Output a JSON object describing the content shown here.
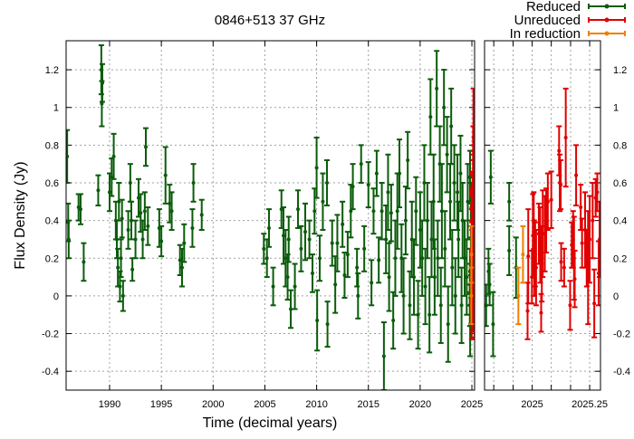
{
  "chart_data": {
    "type": "scatter",
    "title": "0846+513 37 GHz",
    "xlabel": "Time (decimal years)",
    "ylabel": "Flux Density (Jy)",
    "grid": true,
    "legend_position": "top-right",
    "ylim": [
      -0.5,
      1.354
    ],
    "y_ticks": [
      -0.4,
      -0.2,
      0,
      0.2,
      0.4,
      0.6,
      0.8,
      1,
      1.2
    ],
    "y_tick_labels": [
      "-0.4",
      "-0.2",
      "0",
      "0.2",
      "0.4",
      "0.6",
      "0.8",
      "1",
      "1.2"
    ],
    "panels": [
      {
        "name": "full",
        "xlim": [
          1985.8,
          2025.26
        ],
        "x_ticks": [
          1990,
          1995,
          2000,
          2005,
          2010,
          2015,
          2020,
          2025
        ],
        "x_tick_labels": [
          "1990",
          "1995",
          "2000",
          "2005",
          "2010",
          "2015",
          "2020",
          "2025"
        ],
        "x_grid": [
          1990,
          1995,
          2000,
          2005,
          2010,
          2015,
          2020,
          2025
        ],
        "y_axis_side": "left"
      },
      {
        "name": "zoom",
        "xlim": [
          2024.793,
          2025.297
        ],
        "x_ticks": [
          2025,
          2025.25
        ],
        "x_tick_labels": [
          "2025",
          "2025.25"
        ],
        "x_grid": [
          2024.833,
          2024.917,
          2025,
          2025.083,
          2025.167,
          2025.25
        ],
        "y_axis_side": "right"
      }
    ],
    "series": [
      {
        "name": "Reduced",
        "color": "#0a5c0a",
        "points": [
          [
            1985.9,
            0.74,
            0.14
          ],
          [
            1986.0,
            0.39,
            0.1
          ],
          [
            1986.05,
            0.3,
            0.1
          ],
          [
            1987,
            0.47,
            0.07
          ],
          [
            1987.2,
            0.46,
            0.08
          ],
          [
            1987.5,
            0.18,
            0.1
          ],
          [
            1988.9,
            0.56,
            0.08
          ],
          [
            1989.2,
            1.2,
            0.13
          ],
          [
            1989.25,
            1.02,
            0.12
          ],
          [
            1989.3,
            1.13,
            0.1
          ],
          [
            1990,
            0.55,
            0.1
          ],
          [
            1990.2,
            0.63,
            0.1
          ],
          [
            1990.4,
            0.74,
            0.12
          ],
          [
            1990.6,
            0.4,
            0.1
          ],
          [
            1990.7,
            0.3,
            0.1
          ],
          [
            1990.8,
            0.15,
            0.1
          ],
          [
            1990.9,
            0.5,
            0.1
          ],
          [
            1991,
            0.05,
            0.08
          ],
          [
            1991.1,
            0.2,
            0.1
          ],
          [
            1991.2,
            0.41,
            0.1
          ],
          [
            1991.3,
            0.0,
            0.08
          ],
          [
            1991.8,
            0.35,
            0.1
          ],
          [
            1992,
            0.6,
            0.1
          ],
          [
            1992.1,
            0.4,
            0.1
          ],
          [
            1992.2,
            0.14,
            0.06
          ],
          [
            1992.5,
            0.3,
            0.1
          ],
          [
            1992.8,
            0.52,
            0.1
          ],
          [
            1993,
            0.44,
            0.1
          ],
          [
            1993.2,
            0.3,
            0.1
          ],
          [
            1993.4,
            0.45,
            0.1
          ],
          [
            1993.5,
            0.79,
            0.1
          ],
          [
            1993.7,
            0.37,
            0.1
          ],
          [
            1994.8,
            0.36,
            0.1
          ],
          [
            1995,
            0.29,
            0.08
          ],
          [
            1995.4,
            0.64,
            0.15
          ],
          [
            1995.8,
            0.49,
            0.1
          ],
          [
            1996,
            0.45,
            0.1
          ],
          [
            1996.8,
            0.19,
            0.08
          ],
          [
            1997,
            0.15,
            0.1
          ],
          [
            1997.2,
            0.28,
            0.1
          ],
          [
            1998.1,
            0.6,
            0.1
          ],
          [
            1998,
            0.36,
            0.1
          ],
          [
            1998.9,
            0.43,
            0.08
          ],
          [
            2004.9,
            0.25,
            0.08
          ],
          [
            2005.2,
            0.2,
            0.1
          ],
          [
            2005.4,
            0.36,
            0.1
          ],
          [
            2005.8,
            0.05,
            0.1
          ],
          [
            2006.6,
            0.46,
            0.1
          ],
          [
            2006.8,
            0.32,
            0.15
          ],
          [
            2007,
            0.2,
            0.15
          ],
          [
            2007.2,
            0.1,
            0.12
          ],
          [
            2007.3,
            0.3,
            0.12
          ],
          [
            2007.5,
            -0.07,
            0.1
          ],
          [
            2007.9,
            0.05,
            0.12
          ],
          [
            2008.2,
            0.46,
            0.1
          ],
          [
            2008.5,
            0.25,
            0.12
          ],
          [
            2008.9,
            0.34,
            0.15
          ],
          [
            2009.3,
            0.3,
            0.1
          ],
          [
            2009.6,
            0.12,
            0.1
          ],
          [
            2009.8,
            0.45,
            0.12
          ],
          [
            2010,
            0.68,
            0.16
          ],
          [
            2010.05,
            -0.13,
            0.16
          ],
          [
            2010.3,
            0.2,
            0.12
          ],
          [
            2010.6,
            0.5,
            0.15
          ],
          [
            2011,
            0.6,
            0.12
          ],
          [
            2011.05,
            -0.15,
            0.12
          ],
          [
            2011.5,
            0.28,
            0.12
          ],
          [
            2011.8,
            0.06,
            0.15
          ],
          [
            2012,
            0.28,
            0.15
          ],
          [
            2012.5,
            0.38,
            0.12
          ],
          [
            2012.7,
            0.11,
            0.12
          ],
          [
            2013,
            0.22,
            0.12
          ],
          [
            2013.3,
            0.45,
            0.14
          ],
          [
            2013.5,
            0.58,
            0.12
          ],
          [
            2013.9,
            0.15,
            0.1
          ],
          [
            2014,
            0.0,
            0.12
          ],
          [
            2014.3,
            0.7,
            0.1
          ],
          [
            2014.6,
            0.25,
            0.12
          ],
          [
            2015,
            0.59,
            0.12
          ],
          [
            2015.3,
            0.07,
            0.12
          ],
          [
            2015.5,
            0.45,
            0.12
          ],
          [
            2015.8,
            0.65,
            0.12
          ],
          [
            2016,
            0.19,
            0.12
          ],
          [
            2016.3,
            0.45,
            0.15
          ],
          [
            2016.5,
            -0.32,
            0.18
          ],
          [
            2016.7,
            0.3,
            0.18
          ],
          [
            2016.9,
            0.55,
            0.2
          ],
          [
            2017,
            0.1,
            0.18
          ],
          [
            2017.2,
            0.44,
            0.15
          ],
          [
            2017.4,
            -0.13,
            0.15
          ],
          [
            2017.6,
            0.2,
            0.2
          ],
          [
            2017.8,
            0.45,
            0.2
          ],
          [
            2018,
            0.65,
            0.18
          ],
          [
            2018.2,
            0.2,
            0.18
          ],
          [
            2018.4,
            0.0,
            0.2
          ],
          [
            2018.6,
            0.4,
            0.18
          ],
          [
            2018.8,
            0.72,
            0.15
          ],
          [
            2019,
            -0.05,
            0.18
          ],
          [
            2019.2,
            0.3,
            0.2
          ],
          [
            2019.4,
            0.1,
            0.2
          ],
          [
            2019.6,
            0.45,
            0.18
          ],
          [
            2019.8,
            -0.1,
            0.18
          ],
          [
            2020,
            0.35,
            0.2
          ],
          [
            2020.2,
            0.2,
            0.2
          ],
          [
            2020.4,
            0.6,
            0.2
          ],
          [
            2020.5,
            0.05,
            0.2
          ],
          [
            2020.7,
            0.4,
            0.2
          ],
          [
            2020.9,
            -0.1,
            0.2
          ],
          [
            2021,
            0.95,
            0.2
          ],
          [
            2021.1,
            0.3,
            0.2
          ],
          [
            2021.3,
            0.5,
            0.25
          ],
          [
            2021.4,
            0.1,
            0.2
          ],
          [
            2021.6,
            1.1,
            0.2
          ],
          [
            2021.7,
            0.2,
            0.2
          ],
          [
            2021.9,
            0.7,
            0.2
          ],
          [
            2022,
            -0.05,
            0.2
          ],
          [
            2022.1,
            0.45,
            0.25
          ],
          [
            2022.3,
            1.0,
            0.2
          ],
          [
            2022.4,
            0.25,
            0.2
          ],
          [
            2022.6,
            0.75,
            0.2
          ],
          [
            2022.7,
            -0.15,
            0.2
          ],
          [
            2022.9,
            0.5,
            0.2
          ],
          [
            2023,
            0.9,
            0.2
          ],
          [
            2023.1,
            0.15,
            0.2
          ],
          [
            2023.3,
            0.6,
            0.2
          ],
          [
            2023.4,
            0.0,
            0.2
          ],
          [
            2023.6,
            0.55,
            0.2
          ],
          [
            2023.7,
            0.3,
            0.2
          ],
          [
            2023.9,
            0.65,
            0.2
          ],
          [
            2024,
            -0.05,
            0.2
          ],
          [
            2024.1,
            0.4,
            0.2
          ],
          [
            2024.3,
            0.2,
            0.2
          ],
          [
            2024.5,
            0.1,
            0.2
          ],
          [
            2024.6,
            0.5,
            0.2
          ],
          [
            2024.8,
            -0.05,
            0.11
          ],
          [
            2024.81,
            0.13,
            0.12
          ],
          [
            2024.815,
            0.06,
            0.11
          ],
          [
            2024.83,
            -0.15,
            0.17
          ],
          [
            2024.82,
            0.63,
            0.14
          ],
          [
            2024.9,
            0.5,
            0.1
          ],
          [
            2024.9,
            0.24,
            0.13
          ],
          [
            2024.93,
            0.15,
            0.16
          ]
        ]
      },
      {
        "name": "Unreduced",
        "color": "#e00000",
        "points": [
          [
            2024.98,
            -0.08,
            0.15
          ],
          [
            2024.983,
            0.21,
            0.25
          ],
          [
            2024.999,
            0.1,
            0.14
          ],
          [
            2025.003,
            0.32,
            0.22
          ],
          [
            2025.007,
            0.4,
            0.15
          ],
          [
            2025.009,
            0.2,
            0.2
          ],
          [
            2025.013,
            0.22,
            0.17
          ],
          [
            2025.017,
            0.15,
            0.2
          ],
          [
            2025.029,
            0.33,
            0.16
          ],
          [
            2025.035,
            0.27,
            0.2
          ],
          [
            2025.039,
            -0.09,
            0.1
          ],
          [
            2025.042,
            0.17,
            0.2
          ],
          [
            2025.046,
            0.33,
            0.23
          ],
          [
            2025.055,
            0.33,
            0.2
          ],
          [
            2025.061,
            0.4,
            0.17
          ],
          [
            2025.068,
            0.5,
            0.15
          ],
          [
            2025.083,
            0.51,
            0.15
          ],
          [
            2025.117,
            0.77,
            0.13
          ],
          [
            2025.12,
            0.6,
            0.15
          ],
          [
            2025.124,
            0.59,
            0.13
          ],
          [
            2025.126,
            0.18,
            0.1
          ],
          [
            2025.139,
            0.15,
            0.1
          ],
          [
            2025.146,
            0.84,
            0.26
          ],
          [
            2025.165,
            -0.05,
            0.13
          ],
          [
            2025.172,
            0.27,
            0.12
          ],
          [
            2025.178,
            0.3,
            0.15
          ],
          [
            2025.182,
            0.2,
            0.22
          ],
          [
            2025.185,
            0.09,
            0.15
          ],
          [
            2025.191,
            0.64,
            0.16
          ],
          [
            2025.211,
            0.47,
            0.12
          ],
          [
            2025.217,
            0.28,
            0.13
          ],
          [
            2025.23,
            0.35,
            0.2
          ],
          [
            2025.237,
            0.2,
            0.15
          ],
          [
            2025.243,
            0.15,
            0.3
          ],
          [
            2025.25,
            0.3,
            0.23
          ],
          [
            2025.263,
            0.4,
            0.2
          ],
          [
            2025.27,
            -0.04,
            0.18
          ],
          [
            2025.276,
            0.52,
            0.1
          ],
          [
            2025.283,
            0.55,
            0.1
          ],
          [
            2025.289,
            0.12,
            0.17
          ],
          [
            2025.293,
            0.3,
            0.2
          ]
        ]
      },
      {
        "name": "In reduction",
        "color": "#f08000",
        "points": [
          [
            2024.94,
            0.0,
            0.15
          ],
          [
            2024.96,
            0.22,
            0.15
          ]
        ]
      }
    ]
  }
}
